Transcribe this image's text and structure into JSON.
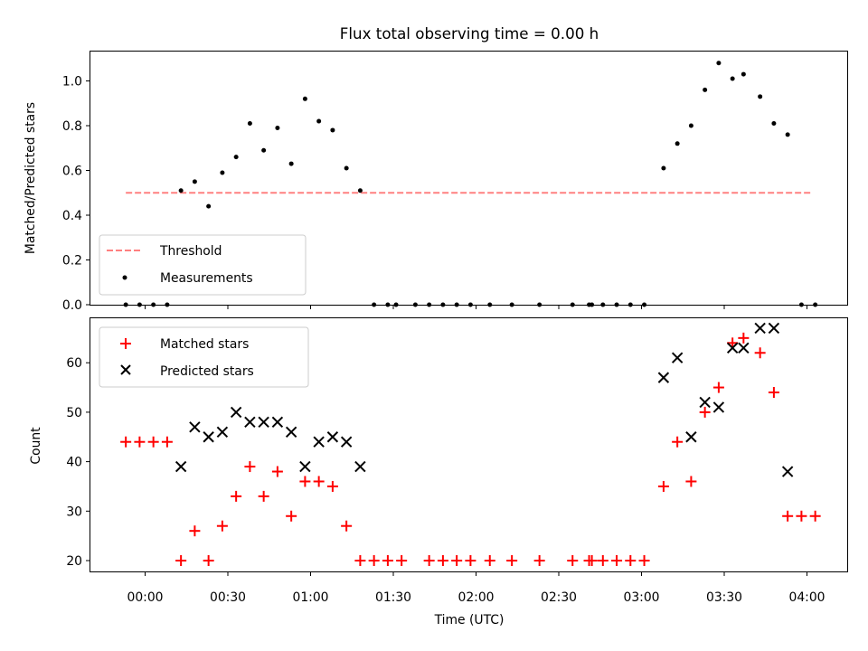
{
  "chart_data": [
    {
      "type": "scatter",
      "title": "Flux total observing time = 0.00 h",
      "ylabel": "Matched/Predicted stars",
      "xlabel": "",
      "ylim": [
        0,
        1.13
      ],
      "yticks": [
        "0.0",
        "0.2",
        "0.4",
        "0.6",
        "0.8",
        "1.0"
      ],
      "grid": false,
      "legend": {
        "position": "lower-left",
        "entries": [
          {
            "label": "Threshold",
            "style": "dashed-line",
            "color": "#ff8080"
          },
          {
            "label": "Measurements",
            "style": "dot",
            "color": "#000000"
          }
        ]
      },
      "series": [
        {
          "name": "Threshold",
          "kind": "line",
          "color": "#ff8080",
          "x": [
            "23:53",
            "04:02"
          ],
          "y": [
            0.5,
            0.5
          ]
        },
        {
          "name": "Measurements",
          "kind": "dots",
          "color": "#000000",
          "x": [
            "23:53",
            "23:58",
            "00:03",
            "00:08",
            "00:13",
            "00:18",
            "00:23",
            "00:28",
            "00:33",
            "00:38",
            "00:43",
            "00:48",
            "00:53",
            "00:58",
            "01:03",
            "01:08",
            "01:13",
            "01:18",
            "01:23",
            "01:28",
            "01:31",
            "01:38",
            "01:43",
            "01:48",
            "01:53",
            "01:58",
            "02:05",
            "02:13",
            "02:23",
            "02:35",
            "02:41",
            "02:42",
            "02:46",
            "02:51",
            "02:56",
            "03:01",
            "03:08",
            "03:13",
            "03:18",
            "03:23",
            "03:28",
            "03:33",
            "03:37",
            "03:43",
            "03:48",
            "03:53",
            "03:58",
            "04:03"
          ],
          "y": [
            0.0,
            0.0,
            0.0,
            0.0,
            0.51,
            0.55,
            0.44,
            0.59,
            0.66,
            0.81,
            0.69,
            0.79,
            0.63,
            0.92,
            0.82,
            0.78,
            0.61,
            0.51,
            0.0,
            0.0,
            0.0,
            0.0,
            0.0,
            0.0,
            0.0,
            0.0,
            0.0,
            0.0,
            0.0,
            0.0,
            0.0,
            0.0,
            0.0,
            0.0,
            0.0,
            0.0,
            0.61,
            0.72,
            0.8,
            0.96,
            1.08,
            1.01,
            1.03,
            0.93,
            0.81,
            0.76,
            0.0,
            0.0
          ]
        }
      ]
    },
    {
      "type": "scatter",
      "title": "",
      "ylabel": "Count",
      "xlabel": "Time (UTC)",
      "ylim": [
        18,
        69
      ],
      "yticks": [
        "20",
        "30",
        "40",
        "50",
        "60"
      ],
      "xticks": [
        "00:00",
        "00:30",
        "01:00",
        "01:30",
        "02:00",
        "02:30",
        "03:00",
        "03:30",
        "04:00"
      ],
      "grid": false,
      "legend": {
        "position": "upper-left",
        "entries": [
          {
            "label": "Matched stars",
            "style": "plus",
            "color": "#ff0000"
          },
          {
            "label": "Predicted stars",
            "style": "x",
            "color": "#000000"
          }
        ]
      },
      "series": [
        {
          "name": "Matched stars",
          "kind": "plus",
          "color": "#ff0000",
          "x": [
            "23:53",
            "23:58",
            "00:03",
            "00:08",
            "00:13",
            "00:18",
            "00:23",
            "00:28",
            "00:33",
            "00:38",
            "00:43",
            "00:48",
            "00:53",
            "00:58",
            "01:03",
            "01:08",
            "01:13",
            "01:18",
            "01:23",
            "01:28",
            "01:33",
            "01:43",
            "01:48",
            "01:53",
            "01:58",
            "02:05",
            "02:13",
            "02:23",
            "02:35",
            "02:41",
            "02:42",
            "02:46",
            "02:51",
            "02:56",
            "03:01",
            "03:08",
            "03:13",
            "03:18",
            "03:23",
            "03:28",
            "03:33",
            "03:37",
            "03:43",
            "03:48",
            "03:53",
            "03:58",
            "04:03"
          ],
          "y": [
            44,
            44,
            44,
            44,
            20,
            26,
            20,
            27,
            33,
            39,
            33,
            38,
            29,
            36,
            36,
            35,
            27,
            20,
            20,
            20,
            20,
            20,
            20,
            20,
            20,
            20,
            20,
            20,
            20,
            20,
            20,
            20,
            20,
            20,
            20,
            35,
            44,
            36,
            50,
            55,
            64,
            65,
            62,
            54,
            29,
            29,
            29
          ]
        },
        {
          "name": "Predicted stars",
          "kind": "x",
          "color": "#000000",
          "x": [
            "00:13",
            "00:18",
            "00:23",
            "00:28",
            "00:33",
            "00:38",
            "00:43",
            "00:48",
            "00:53",
            "00:58",
            "01:03",
            "01:08",
            "01:13",
            "01:18",
            "03:08",
            "03:13",
            "03:18",
            "03:23",
            "03:28",
            "03:33",
            "03:37",
            "03:43",
            "03:48",
            "03:53"
          ],
          "y": [
            39,
            47,
            45,
            46,
            50,
            48,
            48,
            48,
            46,
            39,
            44,
            45,
            44,
            39,
            57,
            61,
            45,
            52,
            51,
            63,
            63,
            67,
            67,
            38
          ]
        }
      ]
    }
  ]
}
